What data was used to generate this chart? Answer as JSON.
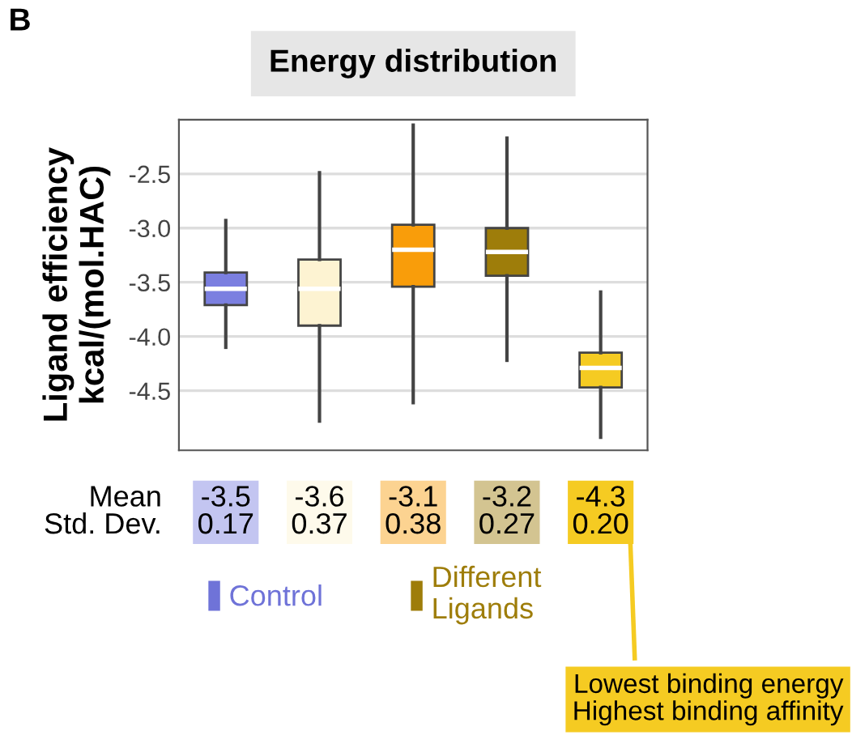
{
  "chart_data": {
    "type": "box",
    "title": "Energy distribution",
    "ylabel": "Ligand efficiency\nkcal/(mol.HAC)",
    "categories": [
      null,
      null,
      null,
      null,
      null
    ],
    "series": [
      {
        "name": "Control",
        "color": "#6f73d8",
        "colors": [
          "#7b7fe0",
          null,
          null,
          null,
          null
        ],
        "boxes": [
          {
            "low": -4.1,
            "q1": -3.71,
            "median": -3.56,
            "q3": -3.41,
            "high": -2.93
          },
          null,
          null,
          null,
          null
        ],
        "value_labels": [
          "-3.5\n0.17",
          null,
          null,
          null,
          null
        ]
      },
      {
        "name": "Different Ligands",
        "color": "#9e7d0a",
        "colors": [
          null,
          "#fdf3d2",
          "#f99d0a",
          "#9e7d0a",
          "#f5cb22"
        ],
        "boxes": [
          null,
          {
            "low": -4.78,
            "q1": -3.9,
            "median": -3.56,
            "q3": -3.29,
            "high": -2.49
          },
          {
            "low": -4.61,
            "q1": -3.54,
            "median": -3.2,
            "q3": -2.97,
            "high": -2.05
          },
          {
            "low": -4.22,
            "q1": -3.44,
            "median": -3.22,
            "q3": -3.0,
            "high": -2.17
          },
          {
            "low": -4.93,
            "q1": -4.47,
            "median": -4.29,
            "q3": -4.15,
            "high": -3.59
          }
        ],
        "value_labels": [
          null,
          "-3.6\n0.37",
          "-3.1\n0.38",
          "-3.2\n0.27",
          "-4.3\n0.20"
        ]
      }
    ],
    "ylim": [
      -5.05,
      -2.0
    ],
    "yticks": [
      -2.5,
      {
        "value": -3,
        "label": "-3.0"
      },
      -3.5,
      {
        "value": -4,
        "label": "-4.0"
      },
      -4.5
    ],
    "grid": "y",
    "legend": "bottom",
    "annotations": [
      "B",
      "Mean\nStd. Dev.",
      "Lowest binding energy\nHighest binding affinity"
    ]
  }
}
